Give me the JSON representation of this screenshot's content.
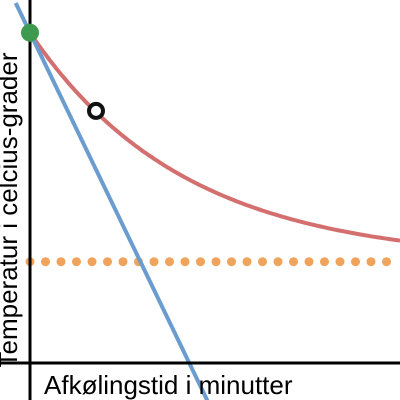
{
  "chart_data": {
    "type": "line",
    "xlabel": "Afkølingstid i minutter",
    "ylabel": "Temperatur i celcius-grader",
    "grid": false,
    "legend": "none",
    "series": [
      {
        "kind": "cooling-curve",
        "color": "#d46f6f",
        "model": "exponential",
        "start": [
          0,
          100
        ],
        "asymptote": 30,
        "decay_rate": 0.185
      },
      {
        "kind": "tangent-line",
        "color": "#6a9ccf",
        "points": [
          [
            0,
            100
          ],
          [
            5.5,
            0
          ]
        ]
      },
      {
        "kind": "asymptote-line",
        "color": "#f0a35a",
        "style": "dotted",
        "y": 30
      }
    ],
    "markers": [
      {
        "kind": "start-point",
        "x": 0,
        "y": 100,
        "color": "#3d9a4e",
        "style": "filled"
      },
      {
        "kind": "sample-point",
        "x": 2.3,
        "y": 76.1,
        "color": "#111111",
        "style": "hollow"
      }
    ],
    "xlim": [
      0,
      12.9
    ],
    "ylim": [
      -12.3,
      110
    ]
  }
}
